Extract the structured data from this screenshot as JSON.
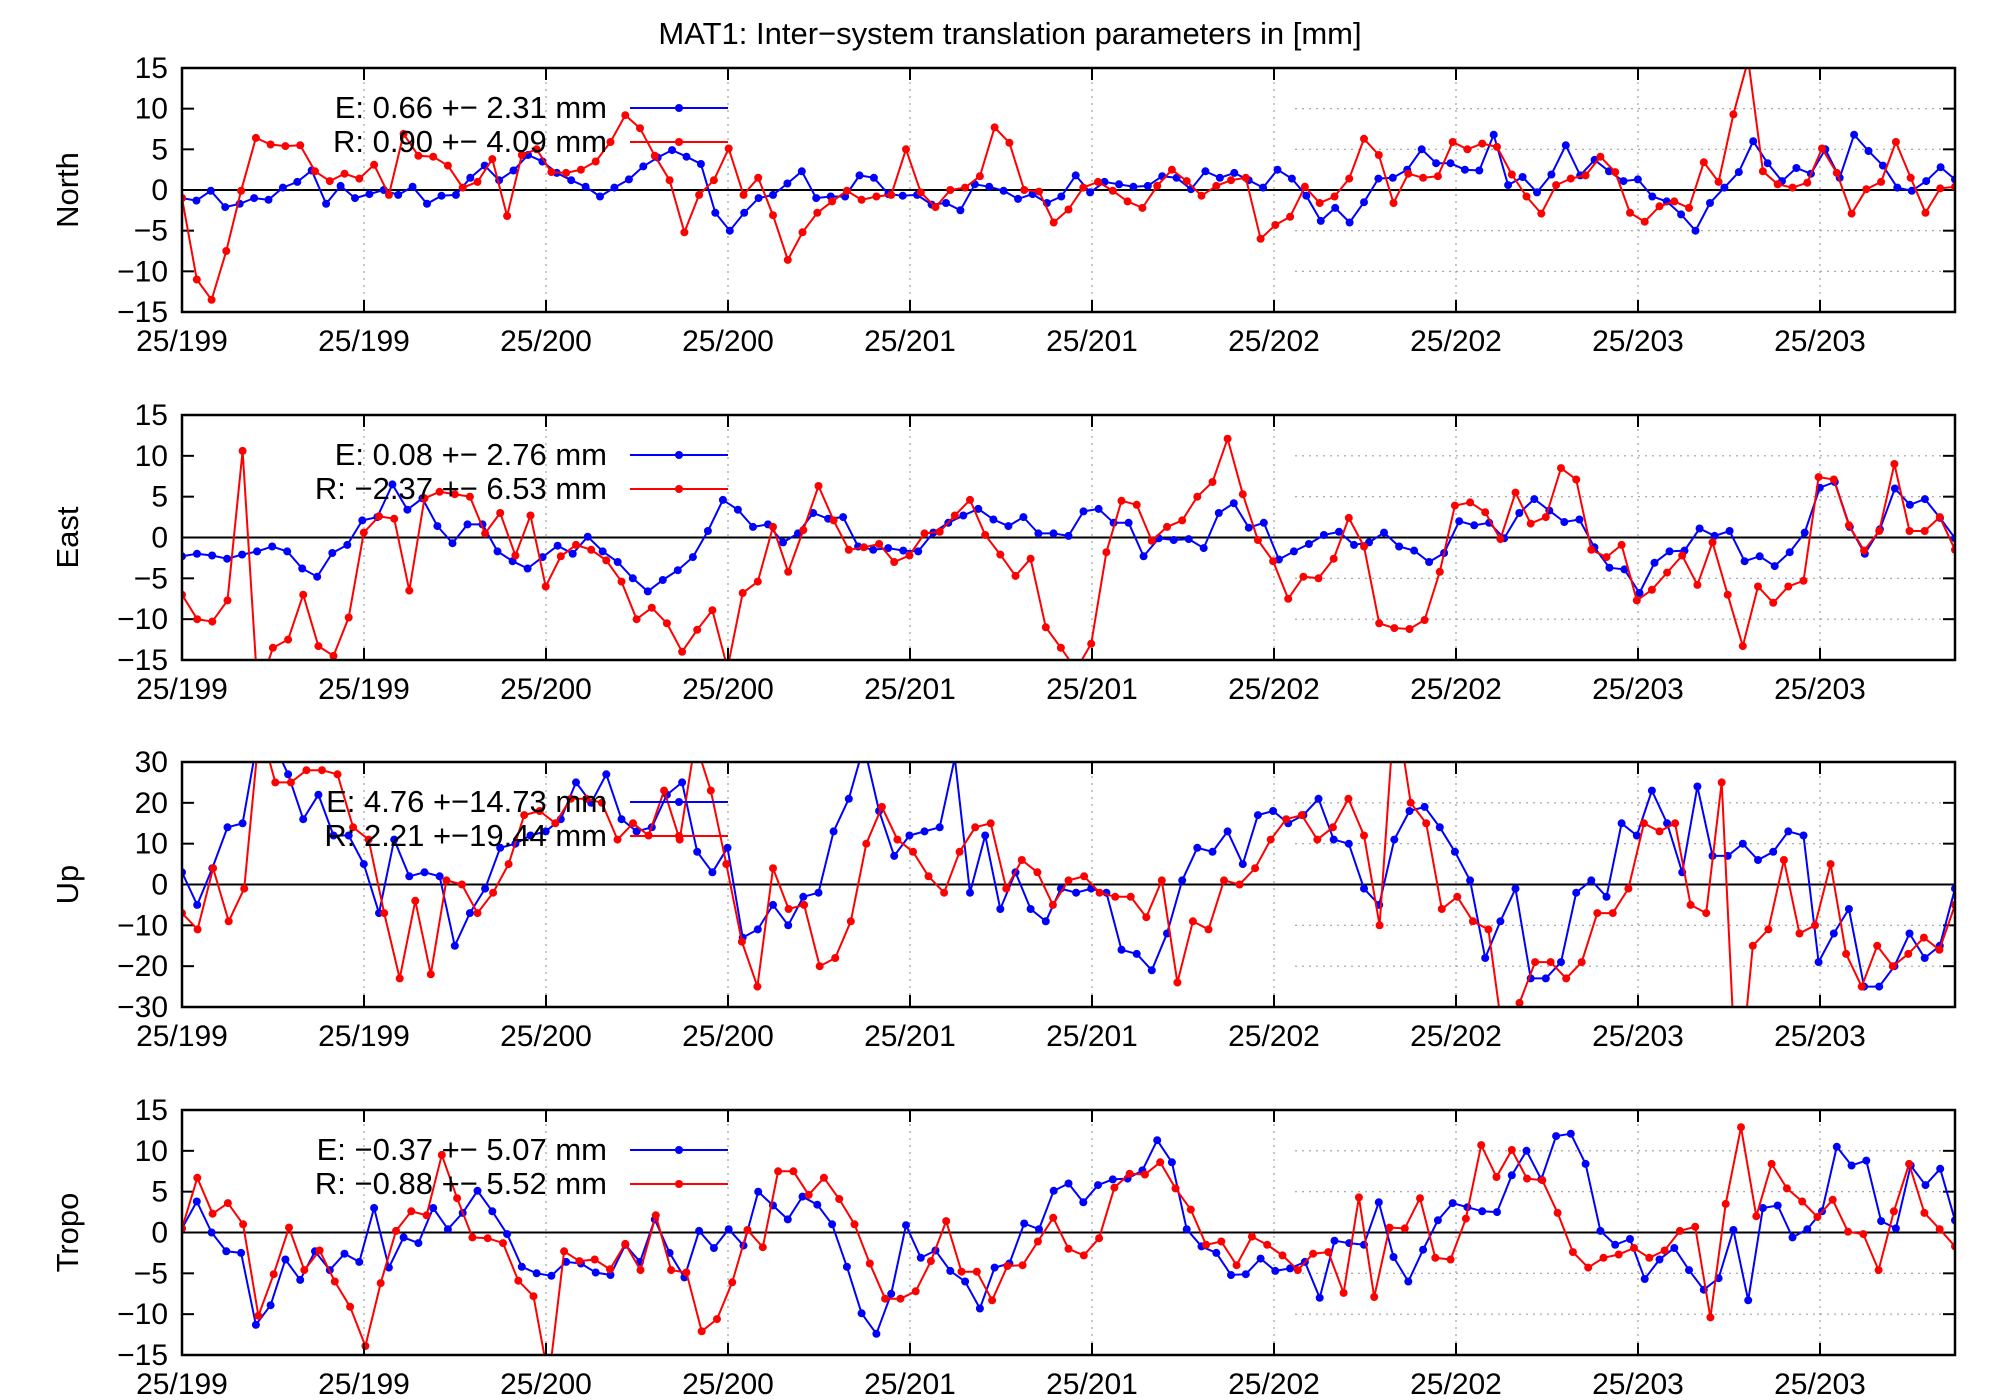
{
  "title": "MAT1: Inter−system translation parameters in [mm]",
  "colors": {
    "E": "#0000ff",
    "R": "#ff0000",
    "grid": "#a0a0a0"
  },
  "x_tick_labels": [
    "25/199",
    "25/199",
    "25/200",
    "25/200",
    "25/201",
    "25/201",
    "25/202",
    "25/202",
    "25/203",
    "25/203"
  ],
  "chart_data": [
    {
      "type": "line",
      "ylabel": "North",
      "ylim": [
        -15,
        15
      ],
      "yticks": [
        -15,
        -10,
        -5,
        0,
        5,
        10,
        15
      ],
      "grid": true,
      "legend_position": "top-left",
      "series": [
        {
          "name": "E:   0.66 +− 2.31 mm",
          "key": "E",
          "values": [
            -1,
            -1.3,
            -0.1,
            -2.1,
            -1.7,
            -1,
            -1.2,
            0.3,
            1,
            2.4,
            -1.7,
            0.5,
            -1,
            -0.5,
            0,
            -0.6,
            0.4,
            -1.7,
            -0.7,
            -0.6,
            1.5,
            3,
            1.2,
            2.4,
            4.3,
            3.5,
            2.1,
            1.2,
            0.4,
            -0.8,
            0.3,
            1.3,
            2.9,
            4,
            4.9,
            4.1,
            3.2,
            -2.8,
            -5,
            -2.8,
            -1,
            -0.6,
            0.8,
            2.3,
            -1,
            -0.8,
            -0.8,
            1.8,
            1.5,
            -0.5,
            -0.7,
            -0.6,
            -1.8,
            -1.6,
            -2.5,
            0.7,
            0.4,
            -0.1,
            -1.1,
            -0.5,
            -1.6,
            -0.8,
            1.8,
            -0.3,
            1,
            0.7,
            0.4,
            0.5,
            1.7,
            1.5,
            0.1,
            2.3,
            1.5,
            2.1,
            1.2,
            0.3,
            2.5,
            1.4,
            -0.7,
            -3.8,
            -2.2,
            -4,
            -1.5,
            1.4,
            1.5,
            2.5,
            5,
            3.3,
            3.3,
            2.5,
            2.4,
            6.8,
            0.6,
            1.6,
            -0.3,
            1.9,
            5.5,
            1.8,
            3.7,
            2.3,
            1.1,
            1.3,
            -0.8,
            -1.4,
            -3,
            -5,
            -1.6,
            0.3,
            2.2,
            6,
            3.3,
            1.1,
            2.7,
            2,
            5,
            1.5,
            6.8,
            4.8,
            3,
            0.3,
            -0.1,
            1.1,
            2.8,
            1.3
          ]
        },
        {
          "name": "R:   0.90 +− 4.09 mm",
          "key": "R",
          "values": [
            -1,
            -11,
            -13.5,
            -7.5,
            -0.1,
            6.4,
            5.6,
            5.4,
            5.5,
            2.3,
            1.1,
            2,
            1.4,
            3.1,
            -0.6,
            6.9,
            4.2,
            4.1,
            3,
            0.3,
            1,
            3.8,
            -3.2,
            4.3,
            5,
            2.2,
            2.1,
            2.5,
            3.5,
            5.9,
            9.2,
            7.6,
            4.2,
            1.2,
            -5.2,
            -0.6,
            1.2,
            5.1,
            -0.6,
            1.5,
            -3.1,
            -8.6,
            -5.2,
            -2.8,
            -1.4,
            -0.1,
            -1.2,
            -0.8,
            -0.6,
            5,
            -0.3,
            -2.1,
            0,
            0.3,
            1.7,
            7.7,
            5.8,
            0,
            -0.2,
            -4,
            -2.4,
            0.3,
            1,
            -0.1,
            -1.4,
            -2.2,
            0.5,
            2.5,
            1.1,
            -0.7,
            0.5,
            1.2,
            1.5,
            -6,
            -4.3,
            -3.3,
            0.4,
            -1.6,
            -0.8,
            1.4,
            6.3,
            4.3,
            -1.6,
            2,
            1.5,
            1.7,
            5.9,
            5,
            5.7,
            5.3,
            1.9,
            -0.8,
            -2.9,
            0.6,
            1.4,
            1.8,
            4.1,
            2.2,
            -2.8,
            -3.9,
            -2,
            -1.4,
            -2.2,
            3.4,
            1,
            9.3,
            16,
            2.3,
            0.7,
            0.3,
            0.9,
            5.1,
            2.1,
            -2.9,
            0.1,
            1,
            5.9,
            1.5,
            -2.8,
            0.2,
            0.4
          ]
        }
      ]
    },
    {
      "type": "line",
      "ylabel": "East",
      "ylim": [
        -15,
        15
      ],
      "yticks": [
        -15,
        -10,
        -5,
        0,
        5,
        10,
        15
      ],
      "grid": true,
      "legend_position": "top-left",
      "series": [
        {
          "name": "E:   0.08 +− 2.76 mm",
          "key": "E",
          "values": [
            -2.3,
            -2,
            -2.2,
            -2.6,
            -2.1,
            -1.7,
            -1.1,
            -1.7,
            -3.8,
            -4.8,
            -1.9,
            -0.9,
            2.1,
            2.5,
            6.5,
            3.4,
            4.8,
            1.4,
            -0.7,
            1.6,
            1.6,
            -1.7,
            -2.9,
            -3.8,
            -2.4,
            -1,
            -2,
            0.1,
            -1.7,
            -3,
            -5,
            -6.6,
            -5.2,
            -4,
            -2.4,
            0.8,
            4.6,
            3.4,
            1.3,
            1.6,
            -0.6,
            0.5,
            3,
            2.3,
            2.5,
            -1.1,
            -1.5,
            -1.3,
            -1.6,
            -1.7,
            0.6,
            1.8,
            2.7,
            3.5,
            2.2,
            1.4,
            2.5,
            0.5,
            0.5,
            0.2,
            3.2,
            3.5,
            1.8,
            1.8,
            -2.3,
            -0.1,
            -0.3,
            -0.2,
            -1.3,
            3,
            4.2,
            1.2,
            1.8,
            -2.7,
            -1.7,
            -0.8,
            0.3,
            0.7,
            -0.9,
            -0.6,
            0.6,
            -1.1,
            -1.6,
            -3,
            -1.9,
            2,
            1.5,
            1.8,
            -0.1,
            3,
            4.7,
            3.3,
            1.9,
            2.2,
            -1.2,
            -3.7,
            -3.9,
            -6.8,
            -3.1,
            -1.7,
            -1.6,
            1.1,
            0.2,
            0.8,
            -2.9,
            -2.3,
            -3.5,
            -1.8,
            0.6,
            6.1,
            6.8,
            1.3,
            -2,
            1,
            6,
            4,
            4.7,
            2.4,
            -0.1
          ]
        },
        {
          "name": "R:   −2.37 +− 6.53 mm",
          "key": "R",
          "values": [
            -7,
            -10,
            -10.3,
            -7.7,
            10.6,
            -19,
            -13.5,
            -12.5,
            -7,
            -13.3,
            -14.5,
            -9.8,
            0.6,
            2.6,
            2.3,
            -6.5,
            4.8,
            5.6,
            5.3,
            5,
            0.5,
            3,
            -2.2,
            2.7,
            -6,
            -2.3,
            -0.9,
            -1.5,
            -2.8,
            -5.4,
            -10,
            -8.6,
            -10.5,
            -14,
            -11.3,
            -8.9,
            -16,
            -6.8,
            -5.4,
            1.3,
            -4.2,
            0.9,
            6.3,
            2.1,
            -1.5,
            -1.2,
            -0.8,
            -3,
            -2.2,
            0.5,
            0.7,
            2.7,
            4.6,
            0.3,
            -2.1,
            -4.7,
            -2.6,
            -11,
            -13.5,
            -16.2,
            -13,
            -1.8,
            4.5,
            4,
            -0.4,
            1.3,
            2.1,
            5,
            6.8,
            12.1,
            5.3,
            -0.3,
            -2.9,
            -7.5,
            -4.8,
            -5,
            -2.6,
            2.4,
            -1.1,
            -10.5,
            -11.1,
            -11.2,
            -10.1,
            -4.2,
            3.9,
            4.3,
            3.1,
            -0.2,
            5.5,
            1.7,
            2.5,
            8.5,
            7.1,
            -1.5,
            -2.4,
            -0.9,
            -7.7,
            -6.4,
            -4.3,
            -2.2,
            -5.8,
            -0.6,
            -7,
            -13.3,
            -6,
            -8,
            -6,
            -5.3,
            7.4,
            7.1,
            1.5,
            -1.6,
            0.8,
            9,
            0.8,
            0.8,
            2.5,
            -1.5
          ]
        }
      ]
    },
    {
      "type": "line",
      "ylabel": "Up",
      "ylim": [
        -30,
        30
      ],
      "yticks": [
        -30,
        -20,
        -10,
        0,
        10,
        20,
        30
      ],
      "grid": true,
      "legend_position": "top-left",
      "series": [
        {
          "name": "E:   4.76 +−14.73 mm",
          "key": "E",
          "values": [
            3,
            -5,
            4,
            14,
            15,
            36,
            35,
            27,
            16,
            22,
            12,
            12,
            5,
            -7,
            11,
            2,
            3,
            2,
            -15,
            -7,
            -1,
            9,
            10,
            12,
            13,
            16,
            25,
            20,
            27,
            16,
            13,
            14,
            22,
            25,
            8,
            3,
            9,
            -13,
            -11,
            -5,
            -10,
            -3,
            -2,
            13,
            21,
            34,
            18,
            7,
            12,
            13,
            14,
            31,
            -2,
            12,
            -6,
            3,
            -6,
            -9,
            -1,
            -2,
            -1,
            -2,
            -16,
            -17,
            -21,
            -12,
            1,
            9,
            8,
            13,
            5,
            17,
            18,
            15,
            17,
            21,
            11,
            10,
            -1,
            -5,
            11,
            18,
            19,
            14,
            8,
            1,
            -18,
            -9,
            -1,
            -23,
            -23,
            -19,
            -2,
            1,
            -3,
            15,
            12,
            23,
            15,
            3,
            24,
            7,
            7,
            10,
            6,
            8,
            13,
            12,
            -19,
            -12,
            -6,
            -25,
            -25,
            -20,
            -12,
            -18,
            -15,
            -1
          ]
        },
        {
          "name": "R:   2.21 +−19.44 mm",
          "key": "R",
          "values": [
            -7,
            -11,
            4,
            -9,
            -1,
            39,
            25,
            25,
            28,
            28,
            27,
            14,
            11,
            -7,
            -23,
            -4,
            -22,
            1,
            0,
            -7,
            -2,
            5,
            17,
            18,
            15,
            21,
            21,
            20,
            11,
            15,
            12,
            23,
            11,
            35,
            23,
            5,
            -14,
            -25,
            4,
            -6,
            -5,
            -20,
            -18,
            -9,
            10,
            19,
            11,
            8,
            2,
            -2,
            8,
            14,
            15,
            -1,
            6,
            3,
            -5,
            1,
            2,
            -2,
            -3,
            -3,
            -8,
            1,
            -24,
            -9,
            -11,
            1,
            0,
            4,
            11,
            16,
            17,
            11,
            14,
            21,
            12,
            -10,
            45,
            20,
            15,
            -6,
            -3,
            -9,
            -11,
            -39,
            -29,
            -19,
            -19,
            -23,
            -19,
            -7,
            -7,
            -1,
            15,
            13,
            15,
            -5,
            -7,
            25,
            -55,
            -15,
            -11,
            6,
            -12,
            -10,
            5,
            -17,
            -25,
            -15,
            -20,
            -17,
            -13,
            -16,
            -5
          ]
        }
      ]
    },
    {
      "type": "line",
      "ylabel": "Tropo",
      "ylim": [
        -15,
        15
      ],
      "yticks": [
        -15,
        -10,
        -5,
        0,
        5,
        10,
        15
      ],
      "grid": true,
      "legend_position": "top-left",
      "series": [
        {
          "name": "E:   −0.37 +− 5.07 mm",
          "key": "E",
          "values": [
            0.5,
            3.8,
            0,
            -2.3,
            -2.5,
            -11.3,
            -8.9,
            -3.3,
            -5.8,
            -2.3,
            -4.6,
            -2.6,
            -3.6,
            3,
            -4.3,
            -0.6,
            -1.3,
            3,
            0.4,
            2.4,
            5.1,
            2.6,
            -0.2,
            -4.2,
            -5,
            -5.3,
            -3.6,
            -3.8,
            -4.9,
            -5.2,
            -1.5,
            -3.6,
            1.6,
            -2.5,
            -5.5,
            0.2,
            -1.9,
            0.4,
            -1.6,
            5,
            3.3,
            1.6,
            4.4,
            3.4,
            1,
            -4.2,
            -9.9,
            -12.4,
            -7.5,
            0.9,
            -3.1,
            -2.2,
            -4.7,
            -6,
            -9.3,
            -4.3,
            -3.8,
            1.1,
            0.4,
            5.1,
            6,
            3.7,
            5.8,
            6.5,
            6.6,
            7.6,
            11.3,
            8.6,
            0.4,
            -1.7,
            -2.5,
            -5.2,
            -5.1,
            -3.2,
            -4.7,
            -4.4,
            -3.6,
            -8,
            -1,
            -1.3,
            -1.5,
            3.7,
            -3,
            -6,
            -2.1,
            1.5,
            3.6,
            3.1,
            2.6,
            2.5,
            7,
            10,
            6.5,
            11.8,
            12.1,
            8.4,
            0.2,
            -1.5,
            -0.8,
            -5.7,
            -3.3,
            -1.9,
            -4.6,
            -7,
            -5.6,
            0.3,
            -8.3,
            3,
            3.3,
            -0.6,
            0.4,
            2.6,
            10.5,
            8.2,
            8.8,
            1.4,
            0.5,
            8.2,
            5.8,
            7.8,
            1.5
          ]
        },
        {
          "name": "R:   −0.88 +− 5.52 mm",
          "key": "R",
          "values": [
            0.5,
            6.7,
            2.3,
            3.6,
            1,
            -10.2,
            -5.1,
            0.6,
            -4.6,
            -2.2,
            -6,
            -9.1,
            -13.9,
            -6.2,
            0.2,
            2.6,
            2.1,
            9.5,
            4.2,
            -0.6,
            -0.7,
            -1.3,
            -5.9,
            -7.8,
            -18,
            -2.3,
            -3.5,
            -3.3,
            -4.5,
            -1.4,
            -4.6,
            2.1,
            -4.6,
            -4.9,
            -12.1,
            -10.6,
            -6.1,
            0.3,
            -1.8,
            7.5,
            7.5,
            4.6,
            6.7,
            4.1,
            1,
            -3.8,
            -8.1,
            -8.1,
            -7.2,
            -3.5,
            1.4,
            -4.8,
            -4.8,
            -8.3,
            -4.1,
            -4,
            -1.1,
            1.8,
            -2,
            -2.8,
            -0.7,
            5.5,
            7.2,
            7.1,
            8.6,
            5.4,
            2.8,
            -1.5,
            -1.1,
            -4,
            -0.5,
            -1.5,
            -2.8,
            -4.6,
            -2.6,
            -2.4,
            -7.4,
            4.3,
            -7.9,
            0.6,
            0.5,
            4.2,
            -3.1,
            -3.3,
            1.7,
            10.7,
            6.8,
            10.1,
            6.6,
            6.4,
            2.4,
            -2.4,
            -4.3,
            -3.1,
            -2.7,
            -1.9,
            -3.1,
            -2.2,
            0.2,
            0.7,
            -10.4,
            3.5,
            12.9,
            2,
            8.4,
            5.4,
            3.8,
            1.9,
            4,
            0.1,
            -0.2,
            -4.6,
            2.6,
            8.4,
            2.4,
            0.4,
            -1.7
          ]
        }
      ]
    }
  ]
}
